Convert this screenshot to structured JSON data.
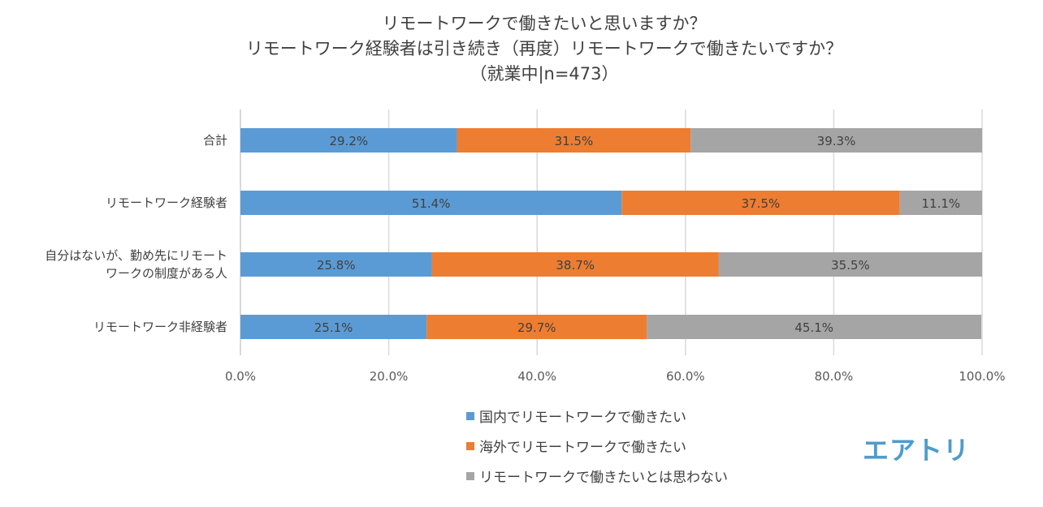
{
  "chart_data": {
    "type": "bar",
    "orientation": "horizontal",
    "stacked": true,
    "title": [
      "リモートワークで働きたいと思いますか？",
      "リモートワーク経験者は引き続き（再度）リモートワークで働きたいですか？",
      "（就業中|n=473）"
    ],
    "categories": [
      "合計",
      "リモートワーク経験者",
      "自分はないが、勤め先にリモート\nワークの制度がある人",
      "リモートワーク非経験者"
    ],
    "series": [
      {
        "name": "国内でリモートワークで働きたい",
        "color": "#5b9bd5",
        "values": [
          29.2,
          51.4,
          25.8,
          25.1
        ]
      },
      {
        "name": "海外でリモートワークで働きたい",
        "color": "#ed7d31",
        "values": [
          31.5,
          37.5,
          38.7,
          29.7
        ]
      },
      {
        "name": "リモートワークで働きたいとは思わない",
        "color": "#a5a5a5",
        "values": [
          39.3,
          11.1,
          35.5,
          45.1
        ]
      }
    ],
    "data_labels": [
      [
        "29.2%",
        "51.4%",
        "25.8%",
        "25.1%"
      ],
      [
        "31.5%",
        "37.5%",
        "38.7%",
        "29.7%"
      ],
      [
        "39.3%",
        "11.1%",
        "35.5%",
        "45.1%"
      ]
    ],
    "x_ticks": [
      "0.0%",
      "20.0%",
      "40.0%",
      "60.0%",
      "80.0%",
      "100.0%"
    ],
    "xlim": [
      0,
      100
    ],
    "xlabel": "",
    "ylabel": "",
    "grid": true,
    "legend_position": "bottom"
  },
  "logo": {
    "text": "エアトリ",
    "color": "#4d9ccc"
  }
}
